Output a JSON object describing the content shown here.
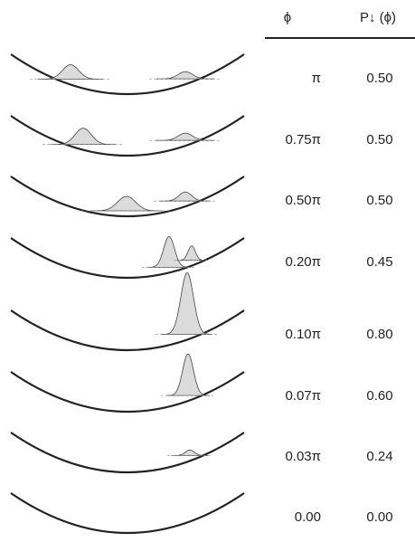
{
  "table": {
    "header": [
      "ϕ",
      "P↓ (ϕ)"
    ],
    "rows": [
      [
        "π",
        "0.50"
      ],
      [
        "0.75π",
        "0.50"
      ],
      [
        "0.50π",
        "0.50"
      ],
      [
        "0.20π",
        "0.45"
      ],
      [
        "0.10π",
        "0.80"
      ],
      [
        "0.07π",
        "0.60"
      ],
      [
        "0.03π",
        "0.24"
      ],
      [
        "0.00",
        "0.00"
      ]
    ]
  }
}
